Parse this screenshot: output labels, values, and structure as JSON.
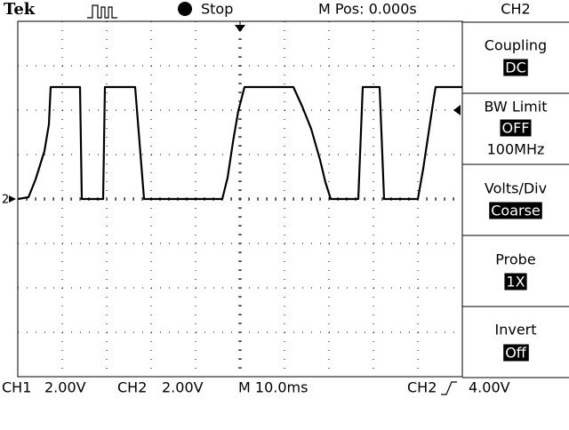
{
  "header": {
    "brand": "Tek",
    "status": "Stop",
    "position": "M Pos: 0.000s",
    "menu_title": "CH2"
  },
  "screen": {
    "channel_marker": "2"
  },
  "menu": [
    {
      "label": "Coupling",
      "value": "DC"
    },
    {
      "label": "BW Limit",
      "value": "OFF",
      "detail": "100MHz"
    },
    {
      "label": "Volts/Div",
      "value": "Coarse"
    },
    {
      "label": "Probe",
      "value": "1X"
    },
    {
      "label": "Invert",
      "value": "Off"
    }
  ],
  "footer": [
    "CH1",
    "2.00V",
    "CH2",
    "2.00V",
    "M 10.0ms",
    "CH2",
    "4.00V"
  ]
}
